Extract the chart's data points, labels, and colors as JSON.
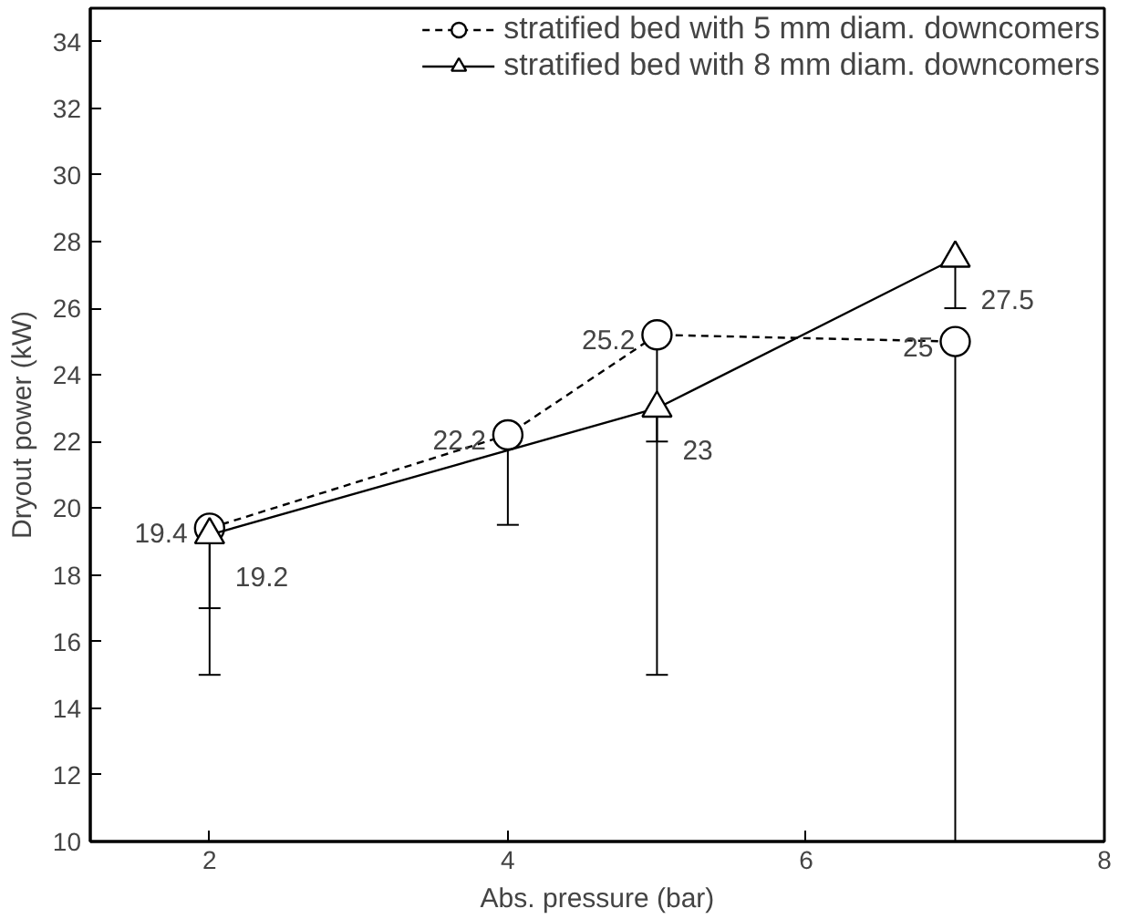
{
  "chart_data": {
    "type": "line",
    "xlabel": "Abs. pressure (bar)",
    "ylabel": "Dryout power (kW)",
    "xlim": [
      1.2,
      8
    ],
    "xticks": [
      2,
      4,
      6,
      8
    ],
    "ylim": [
      10,
      35
    ],
    "yticks": [
      10,
      12,
      14,
      16,
      18,
      20,
      22,
      24,
      26,
      28,
      30,
      32,
      34
    ],
    "grid": false,
    "legend": "top right",
    "data_labels": true,
    "series": [
      {
        "name": "stratified bed with 5 mm diam. downcomers",
        "color": "#000000",
        "marker": "circle",
        "line_style": "dashed",
        "x": [
          2,
          4,
          5,
          7
        ],
        "values": [
          19.4,
          22.2,
          25.2,
          25
        ],
        "errors": [
          [
            15,
            19.4
          ],
          [
            19.5,
            22.2
          ],
          [
            15,
            25.2
          ],
          [
            10,
            25
          ]
        ]
      },
      {
        "name": "stratified bed with 8 mm diam. downcomers",
        "color": "#000000",
        "marker": "triangle",
        "line_style": "solid",
        "x": [
          2,
          5,
          7
        ],
        "values": [
          19.2,
          23,
          27.5
        ],
        "errors": [
          [
            17,
            19.2
          ],
          [
            22,
            23
          ],
          [
            26,
            27.5
          ]
        ]
      }
    ]
  }
}
